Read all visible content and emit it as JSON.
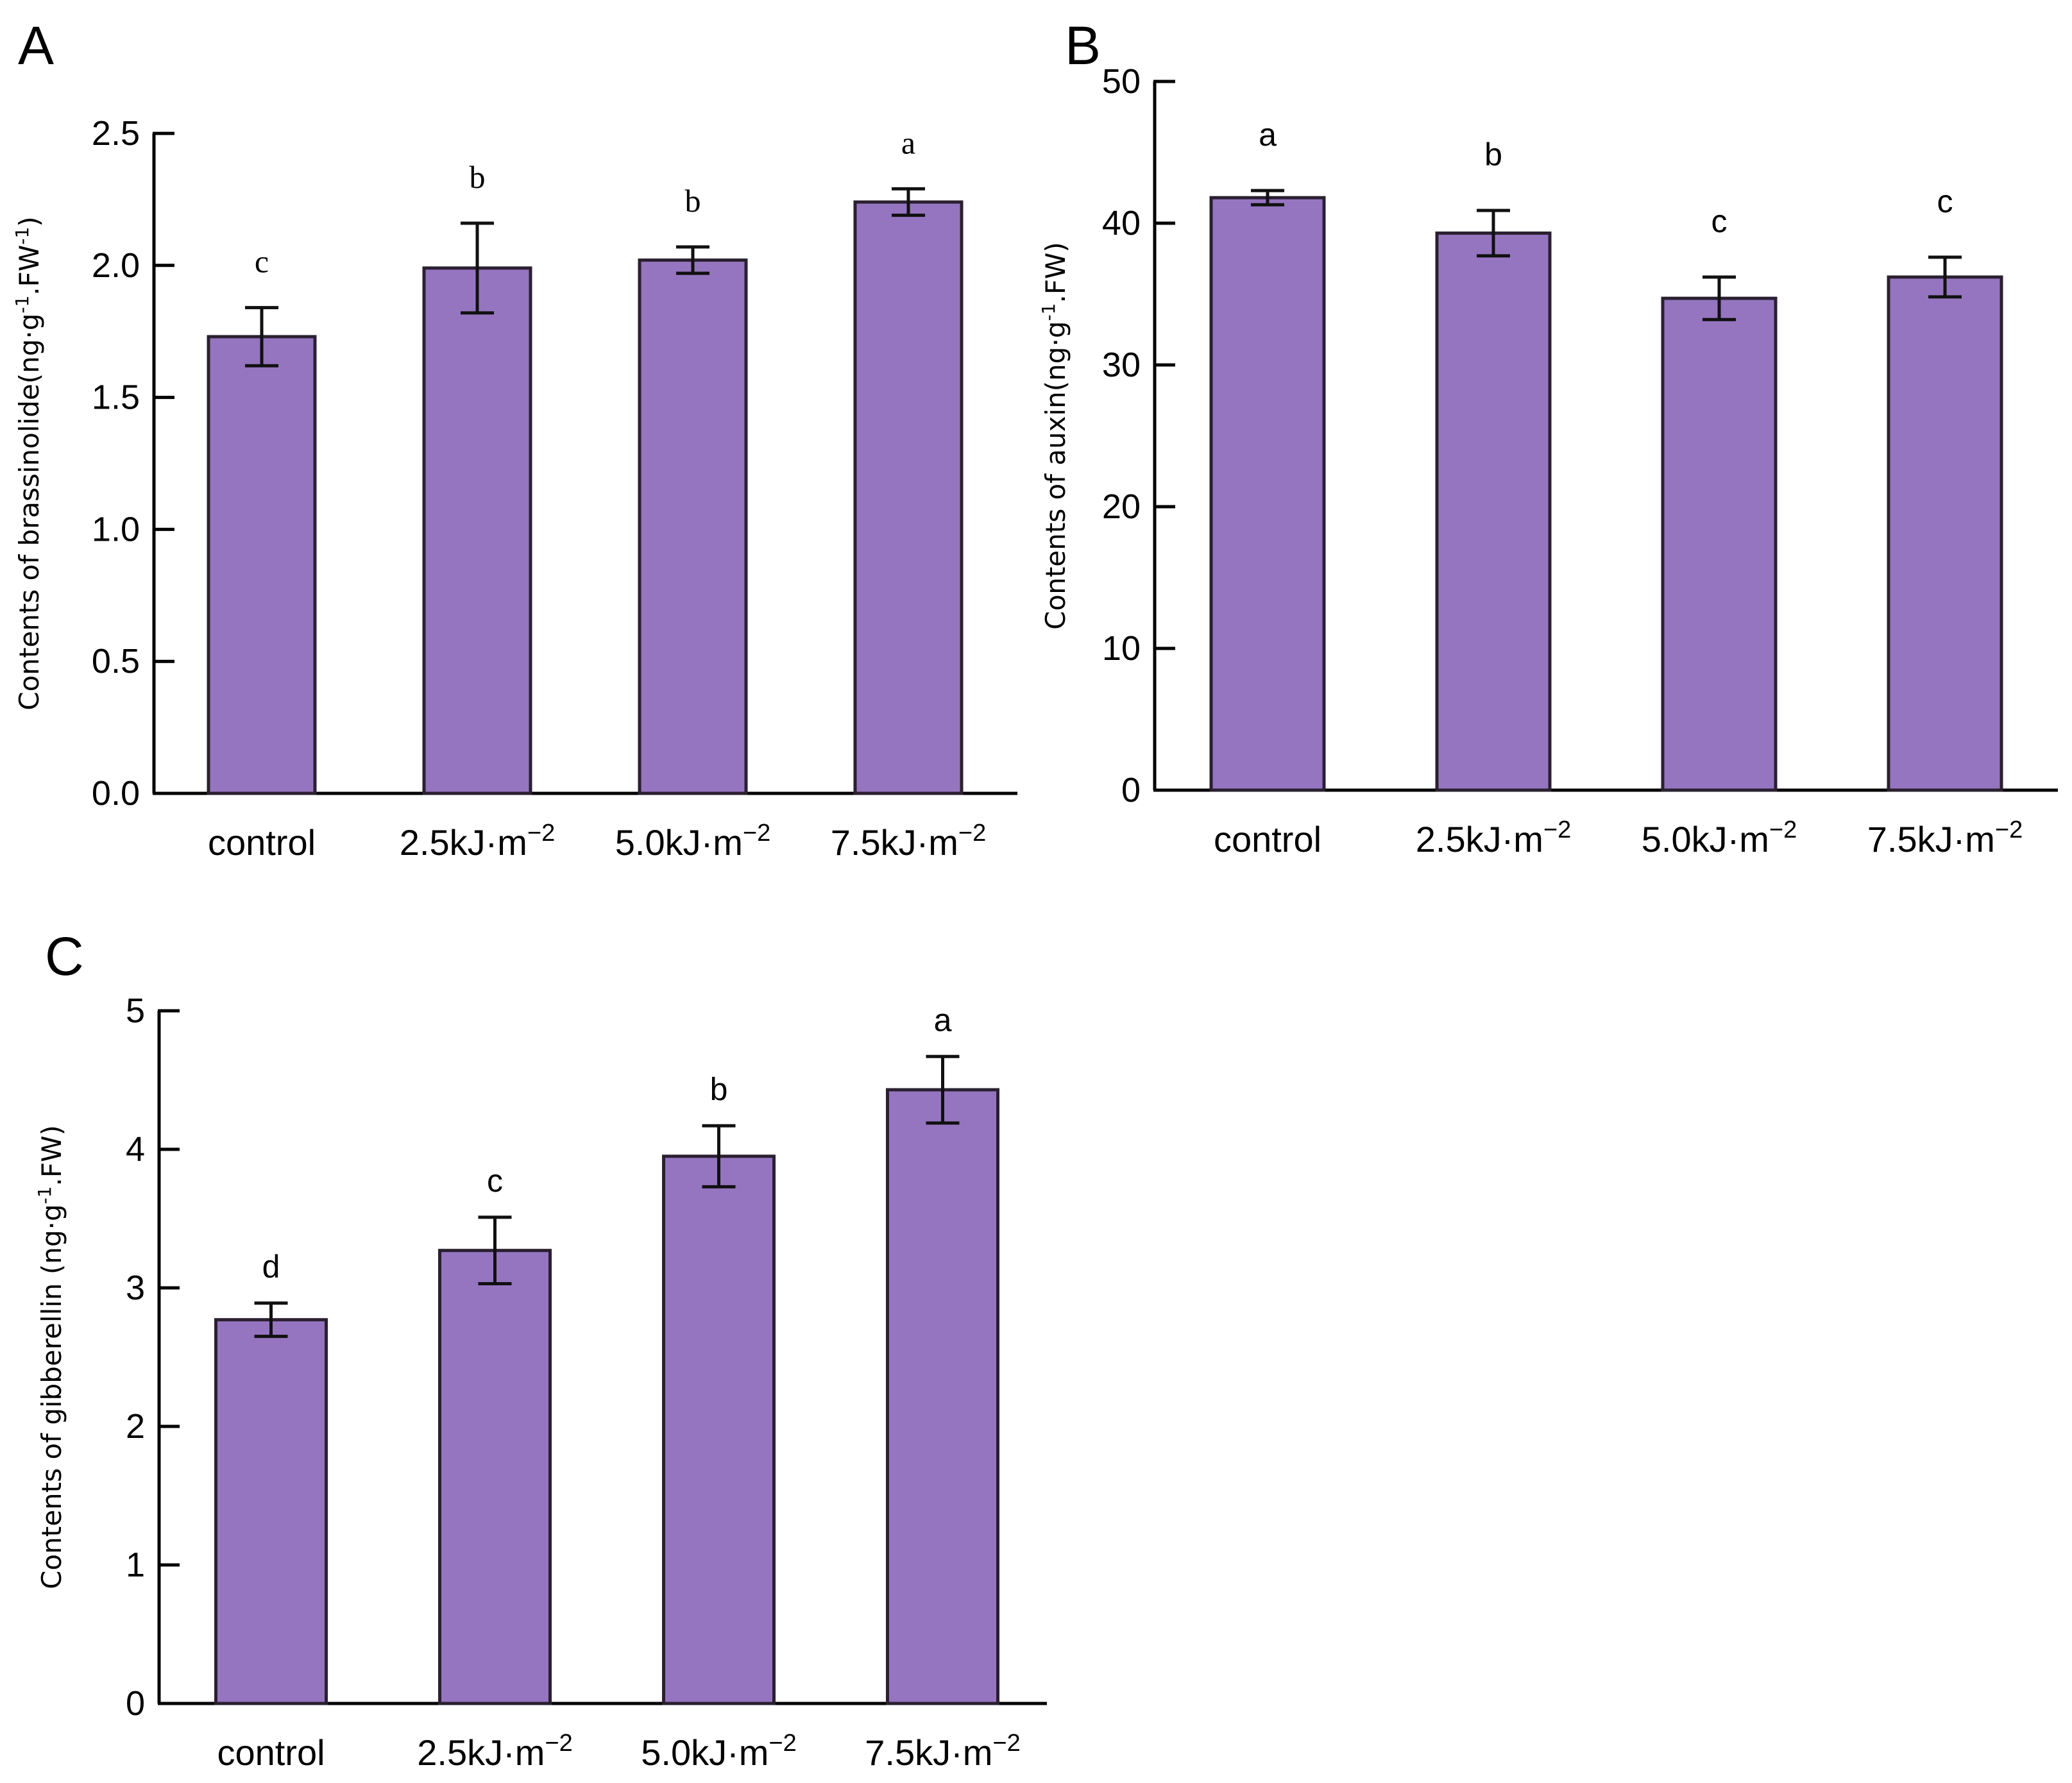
{
  "chart_data": [
    {
      "panel": "A",
      "type": "bar",
      "categories": [
        "control",
        "2.5kJ·m",
        "5.0kJ·m",
        "7.5kJ·m"
      ],
      "category_superscripts": [
        "",
        "−2",
        "−2",
        "−2"
      ],
      "values": [
        1.73,
        1.99,
        2.02,
        2.24
      ],
      "errors": [
        0.11,
        0.17,
        0.05,
        0.05
      ],
      "significance": [
        "c",
        "b",
        "b",
        "a"
      ],
      "ylabel": "Contents of brassinolide(ng·g",
      "ylabel_parts": [
        "Contents of brassinolide(ng·g",
        "-1",
        ".FW",
        "-1",
        ")"
      ],
      "ylim": [
        0,
        2.5
      ],
      "yticks": [
        "0.0",
        "0.5",
        "1.0",
        "1.5",
        "2.0",
        "2.5"
      ],
      "bar_color": "#9575c0",
      "grid": false
    },
    {
      "panel": "B",
      "type": "bar",
      "categories": [
        "control",
        "2.5kJ·m",
        "5.0kJ·m",
        "7.5kJ·m"
      ],
      "category_superscripts": [
        "",
        "−2",
        "−2",
        "−2"
      ],
      "values": [
        41.8,
        39.3,
        34.7,
        36.2
      ],
      "errors": [
        0.5,
        1.6,
        1.5,
        1.4
      ],
      "significance": [
        "a",
        "b",
        "c",
        "c"
      ],
      "ylabel": "Contents of auxin(ng·g",
      "ylabel_parts": [
        "Contents of auxin(ng·g",
        "-1",
        ".FW)",
        "",
        ""
      ],
      "ylim": [
        0,
        50
      ],
      "yticks": [
        "0",
        "10",
        "20",
        "30",
        "40",
        "50"
      ],
      "bar_color": "#9575c0",
      "grid": false
    },
    {
      "panel": "C",
      "type": "bar",
      "categories": [
        "control",
        "2.5kJ·m",
        "5.0kJ·m",
        "7.5kJ·m"
      ],
      "category_superscripts": [
        "",
        "−2",
        "−2",
        "−2"
      ],
      "values": [
        2.77,
        3.27,
        3.95,
        4.43
      ],
      "errors": [
        0.12,
        0.24,
        0.22,
        0.24
      ],
      "significance": [
        "d",
        "c",
        "b",
        "a"
      ],
      "ylabel": "Contents of gibberellin (ng·g",
      "ylabel_parts": [
        "Contents of gibberellin (ng·g",
        "-1",
        ".FW)",
        "",
        ""
      ],
      "ylim": [
        0,
        5
      ],
      "yticks": [
        "0",
        "1",
        "2",
        "3",
        "4",
        "5"
      ],
      "bar_color": "#9575c0",
      "grid": false
    }
  ]
}
